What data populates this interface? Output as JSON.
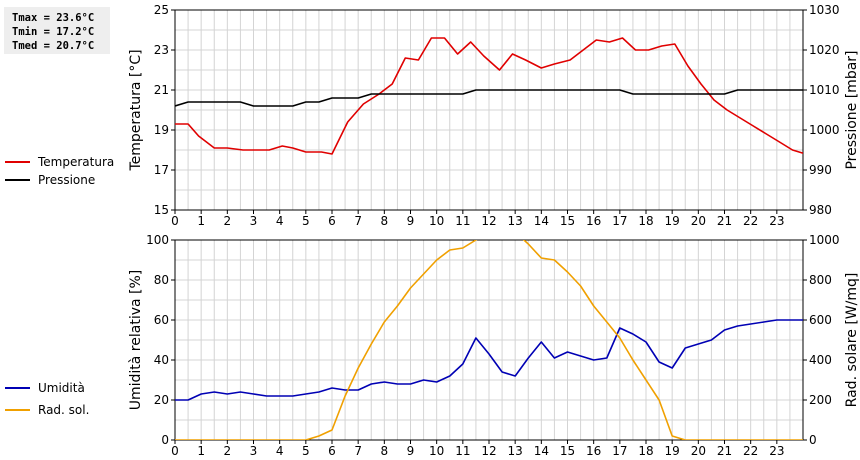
{
  "stats": {
    "tmax": "Tmax = 23.6°C",
    "tmin": "Tmin = 17.2°C",
    "tmed": "Tmed = 20.7°C"
  },
  "chart_data": [
    {
      "type": "line",
      "ylabel": "Temperatura [°C]",
      "y2label": "Pressione [mbar]",
      "xlim": [
        0,
        24
      ],
      "ylim": [
        15,
        25
      ],
      "y2lim": [
        980,
        1030
      ],
      "x_ticks": [
        "0",
        "1",
        "2",
        "3",
        "4",
        "5",
        "6",
        "7",
        "8",
        "9",
        "10",
        "11",
        "12",
        "13",
        "14",
        "15",
        "16",
        "17",
        "18",
        "19",
        "20",
        "21",
        "22",
        "23"
      ],
      "y_ticks": [
        "15",
        "17",
        "19",
        "21",
        "23",
        "25"
      ],
      "y2_ticks": [
        "980",
        "990",
        "1000",
        "1010",
        "1020",
        "1030"
      ],
      "grid": true,
      "legend_position": "left",
      "series": [
        {
          "name": "Temperatura",
          "axis": "left",
          "color": "#e00000",
          "points": [
            [
              0,
              19.3
            ],
            [
              0.5,
              19.3
            ],
            [
              0.9,
              18.7
            ],
            [
              1.5,
              18.1
            ],
            [
              2,
              18.1
            ],
            [
              2.6,
              18.0
            ],
            [
              3,
              18.0
            ],
            [
              3.6,
              18.0
            ],
            [
              4.1,
              18.2
            ],
            [
              4.5,
              18.1
            ],
            [
              5,
              17.9
            ],
            [
              5.6,
              17.9
            ],
            [
              6,
              17.8
            ],
            [
              6.6,
              19.4
            ],
            [
              7.2,
              20.3
            ],
            [
              7.8,
              20.8
            ],
            [
              8.3,
              21.3
            ],
            [
              8.8,
              22.6
            ],
            [
              9.3,
              22.5
            ],
            [
              9.8,
              23.6
            ],
            [
              10.3,
              23.6
            ],
            [
              10.8,
              22.8
            ],
            [
              11.3,
              23.4
            ],
            [
              11.8,
              22.7
            ],
            [
              12.4,
              22.0
            ],
            [
              12.9,
              22.8
            ],
            [
              13.4,
              22.5
            ],
            [
              14.0,
              22.1
            ],
            [
              14.5,
              22.3
            ],
            [
              15.1,
              22.5
            ],
            [
              15.6,
              23.0
            ],
            [
              16.1,
              23.5
            ],
            [
              16.6,
              23.4
            ],
            [
              17.1,
              23.6
            ],
            [
              17.6,
              23.0
            ],
            [
              18.1,
              23.0
            ],
            [
              18.6,
              23.2
            ],
            [
              19.1,
              23.3
            ],
            [
              19.6,
              22.2
            ],
            [
              20.1,
              21.3
            ],
            [
              20.6,
              20.5
            ],
            [
              21.1,
              20.0
            ],
            [
              21.6,
              19.6
            ],
            [
              22.1,
              19.2
            ],
            [
              22.6,
              18.8
            ],
            [
              23.1,
              18.4
            ],
            [
              23.6,
              18.0
            ],
            [
              24.1,
              17.8
            ],
            [
              24.6,
              17.7
            ],
            [
              25.1,
              17.2
            ]
          ]
        },
        {
          "name": "Pressione",
          "axis": "right",
          "color": "#000000",
          "points": [
            [
              0,
              1006
            ],
            [
              0.5,
              1007
            ],
            [
              1,
              1007
            ],
            [
              1.5,
              1007
            ],
            [
              2,
              1007
            ],
            [
              2.5,
              1007
            ],
            [
              3,
              1006
            ],
            [
              3.5,
              1006
            ],
            [
              4,
              1006
            ],
            [
              4.5,
              1006
            ],
            [
              5,
              1007
            ],
            [
              5.5,
              1007
            ],
            [
              6,
              1008
            ],
            [
              6.5,
              1008
            ],
            [
              7,
              1008
            ],
            [
              7.5,
              1009
            ],
            [
              8,
              1009
            ],
            [
              9,
              1009
            ],
            [
              10,
              1009
            ],
            [
              11,
              1009
            ],
            [
              11.5,
              1010
            ],
            [
              12,
              1010
            ],
            [
              13,
              1010
            ],
            [
              14,
              1010
            ],
            [
              15,
              1010
            ],
            [
              16,
              1010
            ],
            [
              17,
              1010
            ],
            [
              17.5,
              1009
            ],
            [
              18,
              1009
            ],
            [
              19,
              1009
            ],
            [
              20,
              1009
            ],
            [
              21,
              1009
            ],
            [
              21.5,
              1010
            ],
            [
              22,
              1010
            ],
            [
              23,
              1010
            ],
            [
              24,
              1010
            ],
            [
              25.1,
              1010
            ]
          ]
        }
      ]
    },
    {
      "type": "line",
      "ylabel": "Umidità relativa [%]",
      "y2label": "Rad. solare [W/mq]",
      "xlim": [
        0,
        24
      ],
      "ylim": [
        0,
        100
      ],
      "y2lim": [
        0,
        1000
      ],
      "x_ticks": [
        "0",
        "1",
        "2",
        "3",
        "4",
        "5",
        "6",
        "7",
        "8",
        "9",
        "10",
        "11",
        "12",
        "13",
        "14",
        "15",
        "16",
        "17",
        "18",
        "19",
        "20",
        "21",
        "22",
        "23"
      ],
      "y_ticks": [
        "0",
        "20",
        "40",
        "60",
        "80",
        "100"
      ],
      "y2_ticks": [
        "0",
        "200",
        "400",
        "600",
        "800",
        "1000"
      ],
      "grid": true,
      "legend_position": "left",
      "series": [
        {
          "name": "Umidità",
          "axis": "left",
          "color": "#0000b4",
          "points": [
            [
              0,
              20
            ],
            [
              0.5,
              20
            ],
            [
              1,
              23
            ],
            [
              1.5,
              24
            ],
            [
              2,
              23
            ],
            [
              2.5,
              24
            ],
            [
              3,
              23
            ],
            [
              3.5,
              22
            ],
            [
              4,
              22
            ],
            [
              4.5,
              22
            ],
            [
              5,
              23
            ],
            [
              5.5,
              24
            ],
            [
              6,
              26
            ],
            [
              6.5,
              25
            ],
            [
              7,
              25
            ],
            [
              7.5,
              28
            ],
            [
              8,
              29
            ],
            [
              8.5,
              28
            ],
            [
              9,
              28
            ],
            [
              9.5,
              30
            ],
            [
              10,
              29
            ],
            [
              10.5,
              32
            ],
            [
              11,
              38
            ],
            [
              11.5,
              51
            ],
            [
              12,
              43
            ],
            [
              12.5,
              34
            ],
            [
              13,
              32
            ],
            [
              13.5,
              41
            ],
            [
              14,
              49
            ],
            [
              14.5,
              41
            ],
            [
              15,
              44
            ],
            [
              15.5,
              42
            ],
            [
              16,
              40
            ],
            [
              16.5,
              41
            ],
            [
              17,
              56
            ],
            [
              17.5,
              53
            ],
            [
              18,
              49
            ],
            [
              18.5,
              39
            ],
            [
              19,
              36
            ],
            [
              19.5,
              46
            ],
            [
              20,
              48
            ],
            [
              20.5,
              50
            ],
            [
              21,
              55
            ],
            [
              21.5,
              57
            ],
            [
              22,
              58
            ],
            [
              22.5,
              59
            ],
            [
              23,
              60
            ],
            [
              23.5,
              60
            ],
            [
              24,
              60
            ]
          ]
        },
        {
          "name": "Rad. sol.",
          "axis": "right",
          "color": "#f0a000",
          "points": [
            [
              0,
              0
            ],
            [
              1,
              0
            ],
            [
              2,
              0
            ],
            [
              3,
              0
            ],
            [
              4,
              0
            ],
            [
              5,
              0
            ],
            [
              5.5,
              20
            ],
            [
              6,
              50
            ],
            [
              6.5,
              220
            ],
            [
              7,
              360
            ],
            [
              7.5,
              480
            ],
            [
              8,
              590
            ],
            [
              8.5,
              670
            ],
            [
              9,
              760
            ],
            [
              9.5,
              830
            ],
            [
              10,
              900
            ],
            [
              10.5,
              950
            ],
            [
              11,
              960
            ],
            [
              11.5,
              1000
            ],
            [
              12,
              1040
            ],
            [
              12.5,
              1050
            ],
            [
              13,
              1040
            ],
            [
              13.5,
              980
            ],
            [
              14,
              910
            ],
            [
              14.5,
              900
            ],
            [
              15,
              840
            ],
            [
              15.5,
              770
            ],
            [
              16,
              670
            ],
            [
              16.5,
              590
            ],
            [
              17,
              510
            ],
            [
              17.5,
              400
            ],
            [
              18,
              300
            ],
            [
              18.5,
              200
            ],
            [
              19,
              20
            ],
            [
              19.5,
              0
            ],
            [
              20,
              0
            ],
            [
              21,
              0
            ],
            [
              22,
              0
            ],
            [
              23,
              0
            ],
            [
              24,
              0
            ]
          ]
        }
      ]
    }
  ]
}
